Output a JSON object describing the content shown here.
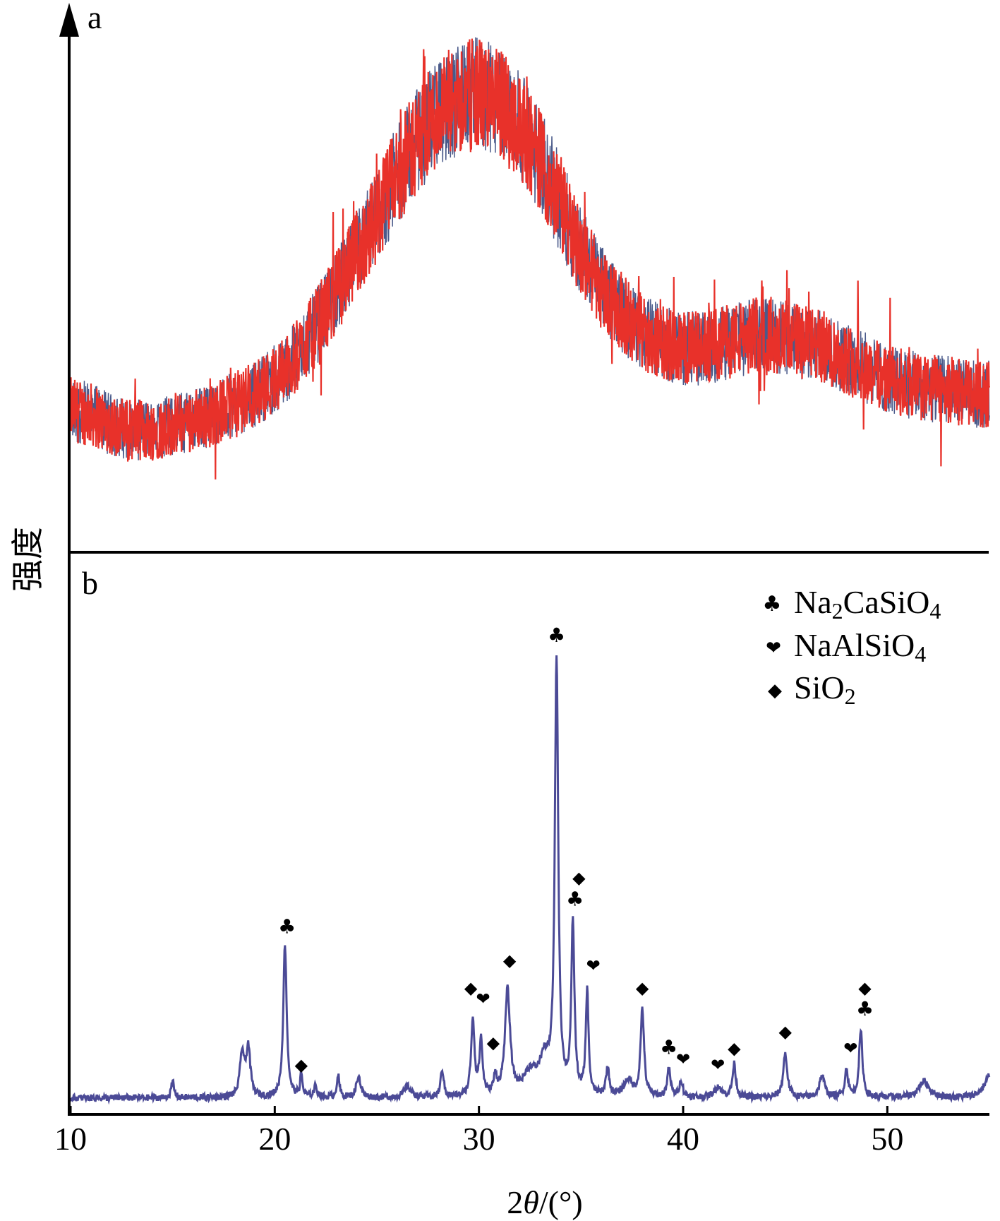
{
  "chart_data": [
    {
      "panel": "a",
      "type": "line",
      "series": [
        {
          "color": "#e8312a",
          "noise_color": "#4a5a8a",
          "x": [
            10,
            11,
            12,
            13,
            14,
            15,
            16,
            17,
            18,
            19,
            20,
            21,
            22,
            23,
            24,
            25,
            26,
            27,
            28,
            29,
            30,
            31,
            32,
            33,
            34,
            35,
            36,
            37,
            38,
            39,
            40,
            41,
            42,
            43,
            44,
            45,
            46,
            47,
            48,
            49,
            50,
            51,
            52,
            53,
            54,
            55
          ],
          "values": [
            28,
            27,
            25,
            24,
            24,
            25,
            26,
            27,
            29,
            31,
            34,
            38,
            44,
            51,
            58,
            66,
            74,
            81,
            86,
            89,
            90,
            88,
            84,
            77,
            68,
            59,
            52,
            47,
            43,
            41,
            40,
            40,
            41,
            42,
            43,
            42,
            41,
            40,
            38,
            36,
            34,
            33,
            32,
            32,
            31,
            31
          ],
          "noise_amplitude": 7
        }
      ],
      "xlim": [
        10,
        55
      ],
      "ylim": [
        0,
        100
      ]
    },
    {
      "panel": "b",
      "type": "line",
      "series": [
        {
          "color": "#4b4a96",
          "baseline": 3,
          "peaks": [
            {
              "x": 15.0,
              "h": 3,
              "w": 0.08
            },
            {
              "x": 18.4,
              "h": 8,
              "w": 0.12
            },
            {
              "x": 18.7,
              "h": 9,
              "w": 0.12
            },
            {
              "x": 20.5,
              "h": 28,
              "w": 0.1
            },
            {
              "x": 21.3,
              "h": 4,
              "w": 0.07
            },
            {
              "x": 22.0,
              "h": 2,
              "w": 0.1
            },
            {
              "x": 23.1,
              "h": 4,
              "w": 0.08
            },
            {
              "x": 24.1,
              "h": 4,
              "w": 0.12
            },
            {
              "x": 26.5,
              "h": 2,
              "w": 0.2
            },
            {
              "x": 28.2,
              "h": 5,
              "w": 0.09
            },
            {
              "x": 29.7,
              "h": 14,
              "w": 0.1
            },
            {
              "x": 30.1,
              "h": 10,
              "w": 0.09
            },
            {
              "x": 30.8,
              "h": 3,
              "w": 0.1
            },
            {
              "x": 31.4,
              "h": 19,
              "w": 0.15
            },
            {
              "x": 32.5,
              "h": 4,
              "w": 0.4
            },
            {
              "x": 33.2,
              "h": 6,
              "w": 0.3
            },
            {
              "x": 33.8,
              "h": 79,
              "w": 0.1
            },
            {
              "x": 34.6,
              "h": 31,
              "w": 0.09
            },
            {
              "x": 35.3,
              "h": 19,
              "w": 0.08
            },
            {
              "x": 36.3,
              "h": 5,
              "w": 0.1
            },
            {
              "x": 37.3,
              "h": 3,
              "w": 0.25
            },
            {
              "x": 38.0,
              "h": 16,
              "w": 0.1
            },
            {
              "x": 39.3,
              "h": 5,
              "w": 0.1
            },
            {
              "x": 39.9,
              "h": 3,
              "w": 0.1
            },
            {
              "x": 41.7,
              "h": 2,
              "w": 0.2
            },
            {
              "x": 42.5,
              "h": 6,
              "w": 0.1
            },
            {
              "x": 45.0,
              "h": 8,
              "w": 0.12
            },
            {
              "x": 46.8,
              "h": 4,
              "w": 0.15
            },
            {
              "x": 48.0,
              "h": 5,
              "w": 0.1
            },
            {
              "x": 48.7,
              "h": 12,
              "w": 0.1
            },
            {
              "x": 51.8,
              "h": 3,
              "w": 0.3
            },
            {
              "x": 55.0,
              "h": 4,
              "w": 0.3
            }
          ],
          "noise_amplitude": 0.6
        }
      ],
      "annotations": [
        {
          "x": 20.6,
          "y": 33,
          "symbol": "club"
        },
        {
          "x": 21.3,
          "y": 8,
          "symbol": "diamond"
        },
        {
          "x": 29.6,
          "y": 22,
          "symbol": "diamond"
        },
        {
          "x": 30.2,
          "y": 20,
          "symbol": "heart"
        },
        {
          "x": 30.7,
          "y": 12,
          "symbol": "diamond"
        },
        {
          "x": 31.5,
          "y": 27,
          "symbol": "diamond"
        },
        {
          "x": 33.8,
          "y": 86,
          "symbol": "club"
        },
        {
          "x": 34.9,
          "y": 42,
          "symbol": "diamond"
        },
        {
          "x": 34.7,
          "y": 38,
          "symbol": "club"
        },
        {
          "x": 35.6,
          "y": 26,
          "symbol": "heart"
        },
        {
          "x": 38.0,
          "y": 22,
          "symbol": "diamond"
        },
        {
          "x": 39.3,
          "y": 11,
          "symbol": "club"
        },
        {
          "x": 40.0,
          "y": 9,
          "symbol": "heart"
        },
        {
          "x": 41.7,
          "y": 8,
          "symbol": "heart"
        },
        {
          "x": 42.5,
          "y": 11,
          "symbol": "diamond"
        },
        {
          "x": 45.0,
          "y": 14,
          "symbol": "diamond"
        },
        {
          "x": 48.2,
          "y": 11,
          "symbol": "heart"
        },
        {
          "x": 48.9,
          "y": 22,
          "symbol": "diamond"
        },
        {
          "x": 48.9,
          "y": 18,
          "symbol": "club"
        }
      ],
      "xlim": [
        10,
        55
      ],
      "ylim": [
        0,
        100
      ]
    }
  ],
  "panel_labels": {
    "a": "a",
    "b": "b"
  },
  "axes": {
    "xlabel_prefix": "2",
    "xlabel_theta": "θ",
    "xlabel_suffix": "/(°)",
    "ylabel": "强度",
    "xticks": [
      "10",
      "20",
      "30",
      "40",
      "50"
    ],
    "xtick_values": [
      10,
      20,
      30,
      40,
      50
    ]
  },
  "legend": [
    {
      "symbol": "club",
      "label_parts": [
        "Na",
        "2",
        "CaSiO",
        "4"
      ]
    },
    {
      "symbol": "heart",
      "label_parts": [
        "NaAlSiO",
        "4"
      ]
    },
    {
      "symbol": "diamond",
      "label_parts": [
        "SiO",
        "2"
      ]
    }
  ],
  "symbols": {
    "club": "♣",
    "heart": "❤",
    "diamond": "◆"
  }
}
